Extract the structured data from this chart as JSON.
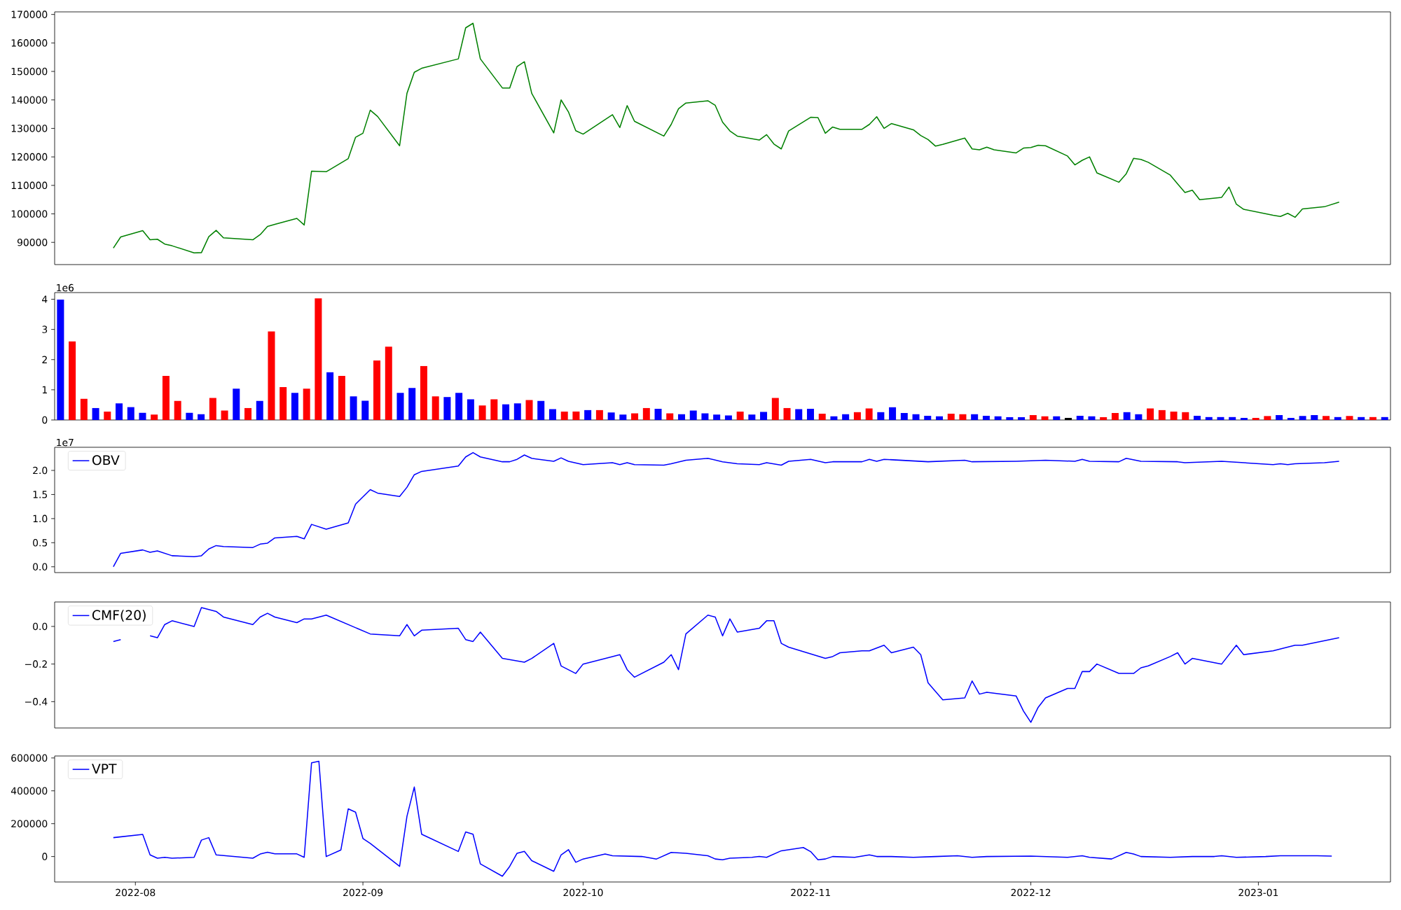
{
  "chart_data": [
    {
      "type": "line",
      "tick_labels": "y",
      "x": [
        "2022-07-29",
        "2022-07-30",
        "2022-08-02",
        "2022-08-03",
        "2022-08-04",
        "2022-08-05",
        "2022-08-06",
        "2022-08-09",
        "2022-08-10",
        "2022-08-11",
        "2022-08-12",
        "2022-08-13",
        "2022-08-17",
        "2022-08-18",
        "2022-08-19",
        "2022-08-20",
        "2022-08-23",
        "2022-08-24",
        "2022-08-25",
        "2022-08-27",
        "2022-08-30",
        "2022-08-31",
        "2022-09-01",
        "2022-09-02",
        "2022-09-03",
        "2022-09-06",
        "2022-09-07",
        "2022-09-08",
        "2022-09-09",
        "2022-09-14",
        "2022-09-15",
        "2022-09-16",
        "2022-09-17",
        "2022-09-20",
        "2022-09-21",
        "2022-09-22",
        "2022-09-23",
        "2022-09-24",
        "2022-09-27",
        "2022-09-28",
        "2022-09-29",
        "2022-09-30",
        "2022-10-01",
        "2022-10-05",
        "2022-10-06",
        "2022-10-07",
        "2022-10-08",
        "2022-10-12",
        "2022-10-13",
        "2022-10-14",
        "2022-10-15",
        "2022-10-18",
        "2022-10-19",
        "2022-10-20",
        "2022-10-21",
        "2022-10-22",
        "2022-10-25",
        "2022-10-26",
        "2022-10-27",
        "2022-10-28",
        "2022-10-29",
        "2022-11-01",
        "2022-11-02",
        "2022-11-03",
        "2022-11-04",
        "2022-11-05",
        "2022-11-08",
        "2022-11-09",
        "2022-11-10",
        "2022-11-11",
        "2022-11-12",
        "2022-11-15",
        "2022-11-16",
        "2022-11-17",
        "2022-11-18",
        "2022-11-19",
        "2022-11-22",
        "2022-11-23",
        "2022-11-24",
        "2022-11-25",
        "2022-11-26",
        "2022-11-29",
        "2022-11-30",
        "2022-12-01",
        "2022-12-02",
        "2022-12-03",
        "2022-12-06",
        "2022-12-07",
        "2022-12-08",
        "2022-12-09",
        "2022-12-10",
        "2022-12-13",
        "2022-12-14",
        "2022-12-15",
        "2022-12-16",
        "2022-12-17",
        "2022-12-20",
        "2022-12-21",
        "2022-12-22",
        "2022-12-23",
        "2022-12-24",
        "2022-12-27",
        "2022-12-28",
        "2022-12-29",
        "2022-12-30",
        "2023-01-03",
        "2023-01-04",
        "2023-01-05",
        "2023-01-06",
        "2023-01-07",
        "2023-01-10",
        "2023-01-12"
      ],
      "series": [
        {
          "color": "#008000",
          "values": [
            88000,
            91900,
            94100,
            90900,
            91100,
            89400,
            88800,
            86300,
            86400,
            92000,
            94200,
            91600,
            90900,
            92700,
            95600,
            96300,
            98400,
            96100,
            115000,
            114800,
            119400,
            126900,
            128300,
            136400,
            134200,
            123900,
            142300,
            149700,
            151100,
            154400,
            165300,
            166900,
            154400,
            144200,
            144200,
            151700,
            153400,
            142300,
            128400,
            140000,
            135800,
            129200,
            128000,
            134800,
            130300,
            138000,
            132500,
            127300,
            131400,
            136900,
            138900,
            139700,
            138100,
            132200,
            129100,
            127300,
            125900,
            127800,
            124500,
            122800,
            129100,
            133900,
            133800,
            128300,
            130500,
            129700,
            129700,
            131400,
            134100,
            130000,
            131700,
            129500,
            127500,
            126100,
            123800,
            124400,
            126600,
            122800,
            122500,
            123400,
            122500,
            121400,
            123100,
            123300,
            124100,
            123900,
            120300,
            117200,
            118800,
            120000,
            114400,
            111100,
            114100,
            119500,
            119100,
            118100,
            113600,
            110500,
            107500,
            108300,
            105000,
            105800,
            109400,
            103400,
            101600,
            99500,
            99100,
            100200,
            98800,
            101700,
            102500,
            104100
          ]
        }
      ],
      "xlim": [
        "2022-07-21",
        "2023-01-19"
      ],
      "ylim": [
        82200,
        170900
      ],
      "yticks": [
        90000,
        100000,
        110000,
        120000,
        130000,
        140000,
        150000,
        160000,
        170000
      ]
    },
    {
      "type": "bar",
      "tick_labels": "y",
      "annotations": [
        "1e6"
      ],
      "categories": [
        null,
        null,
        null,
        null,
        null,
        null,
        null,
        null,
        null,
        null,
        null,
        null,
        null,
        null,
        null,
        null,
        null,
        null,
        null,
        null,
        null,
        null,
        null,
        null,
        null,
        null,
        null,
        null,
        null,
        null,
        null,
        null,
        null,
        null,
        null,
        null,
        null,
        null,
        null,
        null,
        null,
        null,
        null,
        null,
        null,
        null,
        null,
        null,
        null,
        null,
        null,
        null,
        null,
        null,
        null,
        null,
        null,
        null,
        null,
        null,
        null,
        null,
        null,
        null,
        null,
        null,
        null,
        null,
        null,
        null,
        null,
        null,
        null,
        null,
        null,
        null,
        null,
        null,
        null,
        null,
        null,
        null,
        null,
        null,
        null,
        null,
        null,
        null,
        null,
        null,
        null,
        null,
        null,
        null,
        null,
        null,
        null,
        null,
        null,
        null,
        null,
        null,
        null,
        null,
        null,
        null,
        null,
        null,
        null,
        null,
        null,
        null,
        null,
        null
      ],
      "values": [
        3.99,
        2.6,
        0.7,
        0.4,
        0.28,
        0.55,
        0.43,
        0.24,
        0.18,
        1.46,
        0.63,
        0.24,
        0.19,
        0.73,
        0.31,
        1.04,
        0.4,
        0.63,
        2.93,
        1.09,
        0.9,
        1.04,
        4.03,
        1.58,
        1.46,
        0.78,
        0.64,
        1.97,
        2.43,
        0.9,
        1.06,
        1.79,
        0.78,
        0.76,
        0.9,
        0.69,
        0.48,
        0.69,
        0.52,
        0.55,
        0.66,
        0.63,
        0.36,
        0.28,
        0.28,
        0.33,
        0.33,
        0.25,
        0.18,
        0.22,
        0.4,
        0.37,
        0.22,
        0.19,
        0.31,
        0.22,
        0.18,
        0.15,
        0.28,
        0.18,
        0.27,
        0.73,
        0.4,
        0.36,
        0.37,
        0.21,
        0.12,
        0.19,
        0.26,
        0.38,
        0.26,
        0.42,
        0.23,
        0.19,
        0.14,
        0.12,
        0.21,
        0.19,
        0.19,
        0.14,
        0.12,
        0.09,
        0.09,
        0.16,
        0.12,
        0.12,
        0.07,
        0.14,
        0.12,
        0.09,
        0.23,
        0.26,
        0.19,
        0.38,
        0.33,
        0.28,
        0.26,
        0.14,
        0.1,
        0.1,
        0.1,
        0.07,
        0.07,
        0.13,
        0.16,
        0.07,
        0.13,
        0.16,
        0.13,
        0.1,
        0.13,
        0.1,
        0.1,
        0.1
      ],
      "colors": [
        "#0000ff",
        "#ff0000",
        "#ff0000",
        "#0000ff",
        "#ff0000",
        "#0000ff",
        "#0000ff",
        "#0000ff",
        "#ff0000",
        "#ff0000",
        "#ff0000",
        "#0000ff",
        "#0000ff",
        "#ff0000",
        "#ff0000",
        "#0000ff",
        "#ff0000",
        "#0000ff",
        "#ff0000",
        "#ff0000",
        "#0000ff",
        "#ff0000",
        "#ff0000",
        "#0000ff",
        "#ff0000",
        "#0000ff",
        "#0000ff",
        "#ff0000",
        "#ff0000",
        "#0000ff",
        "#0000ff",
        "#ff0000",
        "#ff0000",
        "#0000ff",
        "#0000ff",
        "#0000ff",
        "#ff0000",
        "#ff0000",
        "#0000ff",
        "#0000ff",
        "#ff0000",
        "#0000ff",
        "#0000ff",
        "#ff0000",
        "#ff0000",
        "#0000ff",
        "#ff0000",
        "#0000ff",
        "#0000ff",
        "#ff0000",
        "#ff0000",
        "#0000ff",
        "#ff0000",
        "#0000ff",
        "#0000ff",
        "#0000ff",
        "#0000ff",
        "#0000ff",
        "#ff0000",
        "#0000ff",
        "#0000ff",
        "#ff0000",
        "#ff0000",
        "#0000ff",
        "#0000ff",
        "#ff0000",
        "#0000ff",
        "#0000ff",
        "#ff0000",
        "#ff0000",
        "#0000ff",
        "#0000ff",
        "#0000ff",
        "#0000ff",
        "#0000ff",
        "#0000ff",
        "#ff0000",
        "#ff0000",
        "#0000ff",
        "#0000ff",
        "#0000ff",
        "#0000ff",
        "#0000ff",
        "#ff0000",
        "#ff0000",
        "#0000ff",
        "#000000",
        "#0000ff",
        "#0000ff",
        "#ff0000",
        "#ff0000",
        "#0000ff",
        "#0000ff",
        "#ff0000",
        "#ff0000",
        "#ff0000",
        "#ff0000",
        "#0000ff",
        "#0000ff",
        "#0000ff",
        "#0000ff",
        "#0000ff",
        "#ff0000",
        "#ff0000",
        "#0000ff",
        "#0000ff",
        "#0000ff",
        "#0000ff",
        "#ff0000",
        "#0000ff",
        "#ff0000",
        "#0000ff",
        "#ff0000",
        "#0000ff"
      ],
      "ylim": [
        0,
        4.22
      ],
      "yticks": [
        0,
        1,
        2,
        3,
        4
      ]
    },
    {
      "type": "line",
      "tick_labels": "y",
      "legend": "top left",
      "annotations": [
        "1e7"
      ],
      "x": [
        "2022-07-29",
        "2022-07-30",
        "2022-08-02",
        "2022-08-03",
        "2022-08-04",
        "2022-08-06",
        "2022-08-09",
        "2022-08-10",
        "2022-08-11",
        "2022-08-12",
        "2022-08-13",
        "2022-08-17",
        "2022-08-18",
        "2022-08-19",
        "2022-08-20",
        "2022-08-23",
        "2022-08-24",
        "2022-08-25",
        "2022-08-27",
        "2022-08-30",
        "2022-08-31",
        "2022-09-02",
        "2022-09-03",
        "2022-09-06",
        "2022-09-07",
        "2022-09-08",
        "2022-09-09",
        "2022-09-14",
        "2022-09-15",
        "2022-09-16",
        "2022-09-17",
        "2022-09-20",
        "2022-09-21",
        "2022-09-22",
        "2022-09-23",
        "2022-09-24",
        "2022-09-27",
        "2022-09-28",
        "2022-09-29",
        "2022-10-01",
        "2022-10-05",
        "2022-10-06",
        "2022-10-07",
        "2022-10-08",
        "2022-10-12",
        "2022-10-13",
        "2022-10-15",
        "2022-10-18",
        "2022-10-20",
        "2022-10-22",
        "2022-10-25",
        "2022-10-26",
        "2022-10-28",
        "2022-10-29",
        "2022-11-01",
        "2022-11-03",
        "2022-11-04",
        "2022-11-08",
        "2022-11-09",
        "2022-11-10",
        "2022-11-11",
        "2022-11-17",
        "2022-11-22",
        "2022-11-23",
        "2022-11-29",
        "2022-12-03",
        "2022-12-07",
        "2022-12-08",
        "2022-12-09",
        "2022-12-13",
        "2022-12-14",
        "2022-12-16",
        "2022-12-21",
        "2022-12-22",
        "2022-12-27",
        "2023-01-03",
        "2023-01-04",
        "2023-01-05",
        "2023-01-06",
        "2023-01-10",
        "2023-01-12"
      ],
      "series": [
        {
          "name": "OBV",
          "color": "#0000ff",
          "values": [
            0,
            0.28,
            0.35,
            0.3,
            0.33,
            0.23,
            0.21,
            0.23,
            0.37,
            0.44,
            0.42,
            0.4,
            0.47,
            0.49,
            0.6,
            0.63,
            0.58,
            0.88,
            0.78,
            0.91,
            1.3,
            1.6,
            1.53,
            1.46,
            1.65,
            1.91,
            1.98,
            2.09,
            2.28,
            2.37,
            2.28,
            2.18,
            2.18,
            2.23,
            2.32,
            2.25,
            2.19,
            2.26,
            2.19,
            2.12,
            2.16,
            2.12,
            2.16,
            2.12,
            2.11,
            2.14,
            2.21,
            2.25,
            2.18,
            2.14,
            2.12,
            2.16,
            2.11,
            2.19,
            2.23,
            2.16,
            2.18,
            2.18,
            2.23,
            2.19,
            2.23,
            2.18,
            2.21,
            2.18,
            2.19,
            2.21,
            2.19,
            2.23,
            2.19,
            2.18,
            2.25,
            2.19,
            2.18,
            2.16,
            2.19,
            2.12,
            2.14,
            2.12,
            2.14,
            2.16,
            2.19
          ]
        }
      ],
      "xlim": [
        "2022-07-21",
        "2023-01-19"
      ],
      "ylim": [
        -0.12,
        2.48
      ],
      "yticks": [
        {
          "value": 0,
          "label": "0.0"
        },
        {
          "value": 0.5,
          "label": "0.5"
        },
        {
          "value": 1,
          "label": "1.0"
        },
        {
          "value": 1.5,
          "label": "1.5"
        },
        {
          "value": 2,
          "label": "2.0"
        }
      ]
    },
    {
      "type": "line",
      "tick_labels": "y",
      "legend": "top left",
      "x": [
        "2022-07-29",
        "2022-07-30",
        "2022-08-02",
        "2022-08-03",
        "2022-08-04",
        "2022-08-05",
        "2022-08-06",
        "2022-08-09",
        "2022-08-10",
        "2022-08-12",
        "2022-08-13",
        "2022-08-17",
        "2022-08-18",
        "2022-08-19",
        "2022-08-20",
        "2022-08-23",
        "2022-08-24",
        "2022-08-25",
        "2022-08-27",
        "2022-09-02",
        "2022-09-06",
        "2022-09-07",
        "2022-09-08",
        "2022-09-09",
        "2022-09-14",
        "2022-09-15",
        "2022-09-16",
        "2022-09-17",
        "2022-09-20",
        "2022-09-23",
        "2022-09-24",
        "2022-09-27",
        "2022-09-28",
        "2022-09-30",
        "2022-10-01",
        "2022-10-05",
        "2022-10-06",
        "2022-10-07",
        "2022-10-08",
        "2022-10-12",
        "2022-10-13",
        "2022-10-14",
        "2022-10-15",
        "2022-10-18",
        "2022-10-19",
        "2022-10-20",
        "2022-10-21",
        "2022-10-22",
        "2022-10-25",
        "2022-10-26",
        "2022-10-27",
        "2022-10-28",
        "2022-10-29",
        "2022-11-03",
        "2022-11-04",
        "2022-11-05",
        "2022-11-08",
        "2022-11-09",
        "2022-11-11",
        "2022-11-12",
        "2022-11-15",
        "2022-11-16",
        "2022-11-17",
        "2022-11-19",
        "2022-11-22",
        "2022-11-23",
        "2022-11-24",
        "2022-11-25",
        "2022-11-29",
        "2022-11-30",
        "2022-12-01",
        "2022-12-02",
        "2022-12-03",
        "2022-12-06",
        "2022-12-07",
        "2022-12-08",
        "2022-12-09",
        "2022-12-10",
        "2022-12-13",
        "2022-12-14",
        "2022-12-15",
        "2022-12-16",
        "2022-12-17",
        "2022-12-20",
        "2022-12-21",
        "2022-12-22",
        "2022-12-23",
        "2022-12-27",
        "2022-12-28",
        "2022-12-29",
        "2022-12-30",
        "2023-01-03",
        "2023-01-06",
        "2023-01-07",
        "2023-01-12"
      ],
      "series": [
        {
          "name": "CMF(20)",
          "color": "#0000ff",
          "values": [
            -0.08,
            -0.07,
            null,
            -0.05,
            -0.06,
            0.01,
            0.03,
            0.0,
            0.1,
            0.08,
            0.05,
            0.01,
            0.05,
            0.07,
            0.05,
            0.02,
            0.04,
            0.04,
            0.06,
            -0.04,
            -0.05,
            0.01,
            -0.05,
            -0.02,
            -0.01,
            -0.07,
            -0.08,
            -0.03,
            -0.17,
            -0.19,
            -0.17,
            -0.09,
            -0.21,
            -0.25,
            -0.2,
            -0.16,
            -0.15,
            -0.23,
            -0.27,
            -0.19,
            -0.15,
            -0.23,
            -0.04,
            0.06,
            0.05,
            -0.05,
            0.04,
            -0.03,
            -0.01,
            0.03,
            0.03,
            -0.09,
            -0.11,
            -0.17,
            -0.16,
            -0.14,
            -0.13,
            -0.13,
            -0.1,
            -0.14,
            -0.11,
            -0.15,
            -0.3,
            -0.39,
            -0.38,
            -0.29,
            -0.36,
            -0.35,
            -0.37,
            -0.45,
            -0.51,
            -0.43,
            -0.38,
            -0.33,
            -0.33,
            -0.24,
            -0.24,
            -0.2,
            -0.25,
            -0.25,
            -0.25,
            -0.22,
            -0.21,
            -0.16,
            -0.14,
            -0.2,
            -0.17,
            -0.2,
            -0.15,
            -0.1,
            -0.15,
            -0.13,
            -0.1,
            -0.1,
            -0.06
          ]
        }
      ],
      "xlim": [
        "2022-07-21",
        "2023-01-19"
      ],
      "ylim": [
        -0.54,
        0.13
      ],
      "yticks": [
        {
          "value": -0.4,
          "label": "−0.4"
        },
        {
          "value": -0.2,
          "label": "−0.2"
        },
        {
          "value": 0,
          "label": "0.0"
        }
      ]
    },
    {
      "type": "line",
      "legend": "top left",
      "x": [
        "2022-07-29",
        "2022-08-02",
        "2022-08-03",
        "2022-08-04",
        "2022-08-05",
        "2022-08-06",
        "2022-08-09",
        "2022-08-10",
        "2022-08-11",
        "2022-08-12",
        "2022-08-17",
        "2022-08-18",
        "2022-08-19",
        "2022-08-20",
        "2022-08-23",
        "2022-08-24",
        "2022-08-25",
        "2022-08-26",
        "2022-08-27",
        "2022-08-29",
        "2022-08-30",
        "2022-08-31",
        "2022-09-01",
        "2022-09-02",
        "2022-09-06",
        "2022-09-07",
        "2022-09-08",
        "2022-09-09",
        "2022-09-14",
        "2022-09-15",
        "2022-09-16",
        "2022-09-17",
        "2022-09-20",
        "2022-09-21",
        "2022-09-22",
        "2022-09-23",
        "2022-09-24",
        "2022-09-27",
        "2022-09-28",
        "2022-09-29",
        "2022-09-30",
        "2022-10-01",
        "2022-10-04",
        "2022-10-05",
        "2022-10-09",
        "2022-10-11",
        "2022-10-13",
        "2022-10-15",
        "2022-10-18",
        "2022-10-19",
        "2022-10-20",
        "2022-10-21",
        "2022-10-24",
        "2022-10-25",
        "2022-10-26",
        "2022-10-28",
        "2022-10-31",
        "2022-11-01",
        "2022-11-02",
        "2022-11-03",
        "2022-11-04",
        "2022-11-07",
        "2022-11-09",
        "2022-11-10",
        "2022-11-12",
        "2022-11-15",
        "2022-11-18",
        "2022-11-21",
        "2022-11-23",
        "2022-11-25",
        "2022-12-01",
        "2022-12-06",
        "2022-12-08",
        "2022-12-09",
        "2022-12-12",
        "2022-12-14",
        "2022-12-15",
        "2022-12-16",
        "2022-12-20",
        "2022-12-23",
        "2022-12-26",
        "2022-12-27",
        "2022-12-29",
        "2023-01-02",
        "2023-01-04",
        "2023-01-09",
        "2023-01-11"
      ],
      "series": [
        {
          "name": "VPT",
          "color": "#0000ff",
          "values": [
            115000,
            135000,
            10000,
            -10000,
            -5000,
            -10000,
            -5000,
            100000,
            115000,
            10000,
            -10000,
            15000,
            26000,
            16000,
            16000,
            -5000,
            570000,
            580000,
            0,
            40000,
            290000,
            270000,
            110000,
            80000,
            -60000,
            245000,
            423000,
            136000,
            31000,
            150000,
            136000,
            -45000,
            -120000,
            -60000,
            20000,
            31000,
            -25000,
            -90000,
            10000,
            42000,
            -35000,
            -15000,
            15000,
            5000,
            0,
            -15000,
            25000,
            20000,
            5000,
            -15000,
            -20000,
            -10000,
            -5000,
            0,
            -5000,
            35000,
            55000,
            30000,
            -20000,
            -15000,
            0,
            -5000,
            10000,
            0,
            0,
            -5000,
            0,
            5000,
            -5000,
            0,
            3000,
            -5000,
            5000,
            -5000,
            -15000,
            25000,
            15000,
            0,
            -5000,
            0,
            0,
            5000,
            -5000,
            0,
            5000,
            5000,
            3000
          ]
        }
      ],
      "xlim": [
        "2022-07-21",
        "2023-01-19"
      ],
      "ylim": [
        -155000,
        612000
      ],
      "xticks": [
        "2022-08",
        "2022-09",
        "2022-10",
        "2022-11",
        "2022-12",
        "2023-01"
      ],
      "yticks": [
        0,
        200000,
        400000,
        600000
      ]
    }
  ]
}
